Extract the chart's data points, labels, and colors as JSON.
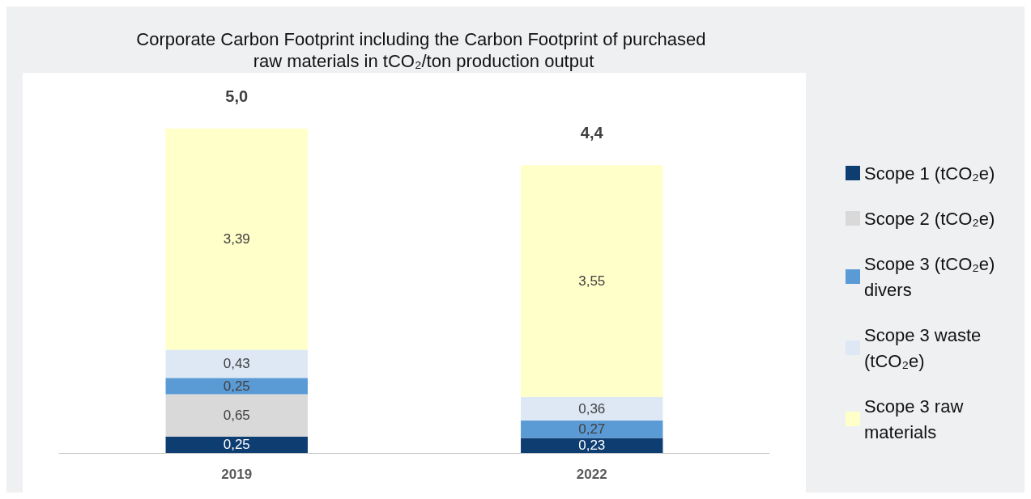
{
  "chart_data": {
    "type": "bar",
    "title": "Corporate Carbon Footprint including the Carbon Footprint of purchased raw materials in tCO₂/ton production output",
    "categories": [
      "2019",
      "2022"
    ],
    "stacked": true,
    "legend": "right",
    "grid": false,
    "totals": [
      "5,0",
      "4,4"
    ],
    "series": [
      {
        "name": "Scope 1 (tCO₂e)",
        "color": "#0e3d72",
        "values": [
          0.25,
          0.23
        ],
        "value_labels": [
          "0,25",
          "0,23"
        ]
      },
      {
        "name": "Scope 2 (tCO₂e)",
        "color": "#d9d9d9",
        "values": [
          0.65,
          null
        ],
        "value_labels": [
          "0,65",
          null
        ]
      },
      {
        "name": "Scope 3 (tCO₂e) divers",
        "color": "#5b9bd5",
        "values": [
          0.25,
          0.27
        ],
        "value_labels": [
          "0,25",
          "0,27"
        ]
      },
      {
        "name": "Scope 3 waste (tCO₂e)",
        "color": "#dde8f4",
        "values": [
          0.43,
          0.36
        ],
        "value_labels": [
          "0,43",
          "0,36"
        ]
      },
      {
        "name": "Scope 3 raw materials",
        "color": "#ffffc9",
        "values": [
          3.39,
          3.55
        ],
        "value_labels": [
          "3,39",
          "3,55"
        ]
      }
    ]
  }
}
